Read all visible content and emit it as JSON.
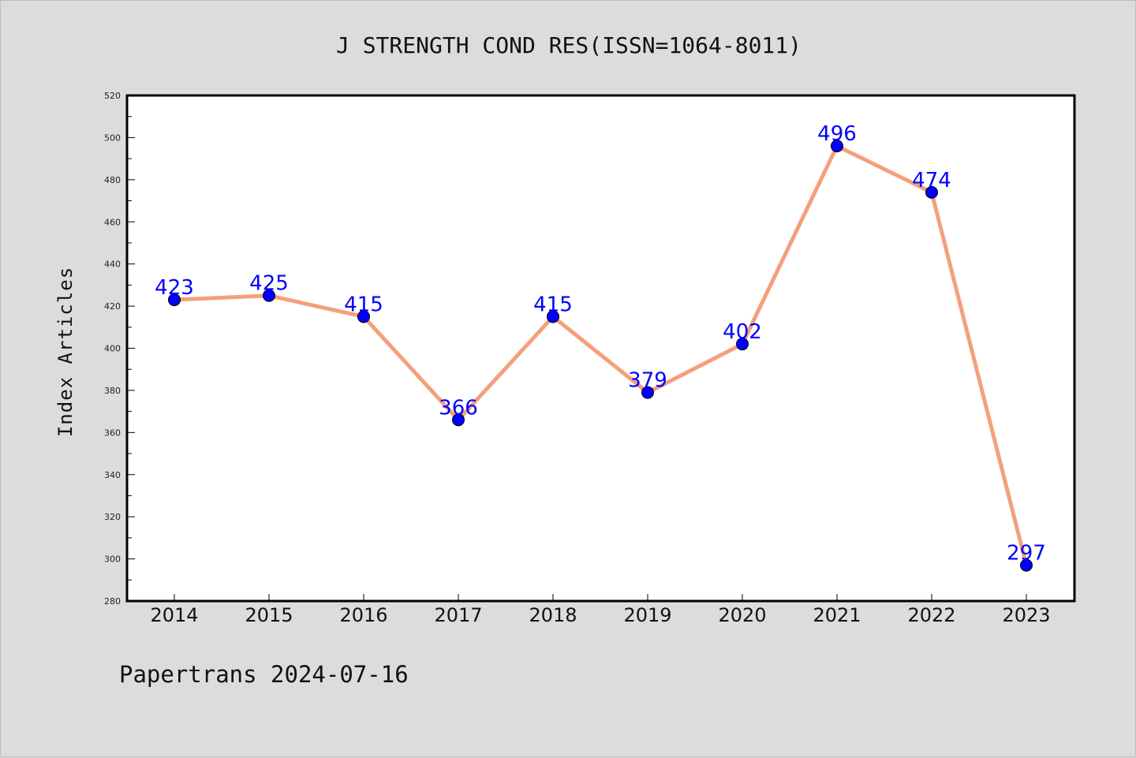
{
  "chart_data": {
    "type": "line",
    "title": "J STRENGTH COND RES(ISSN=1064-8011)",
    "ylabel": "Index Articles",
    "xlabel": "",
    "categories": [
      "2014",
      "2015",
      "2016",
      "2017",
      "2018",
      "2019",
      "2020",
      "2021",
      "2022",
      "2023"
    ],
    "series": [
      {
        "values": [
          423,
          425,
          415,
          366,
          415,
          379,
          402,
          496,
          474,
          297
        ]
      }
    ],
    "data_labels": [
      "423",
      "425",
      "415",
      "366",
      "415",
      "379",
      "402",
      "496",
      "474",
      "297"
    ],
    "ylim": [
      280,
      520
    ],
    "yticks": [
      "280",
      "300",
      "320",
      "340",
      "360",
      "380",
      "400",
      "420",
      "440",
      "460",
      "480",
      "500",
      "520"
    ],
    "grid": false,
    "line_color": "#f4a07c",
    "marker_color": "#0000ff",
    "label_color": "#0000ff"
  },
  "footer": {
    "text": "Papertrans 2024-07-16"
  }
}
